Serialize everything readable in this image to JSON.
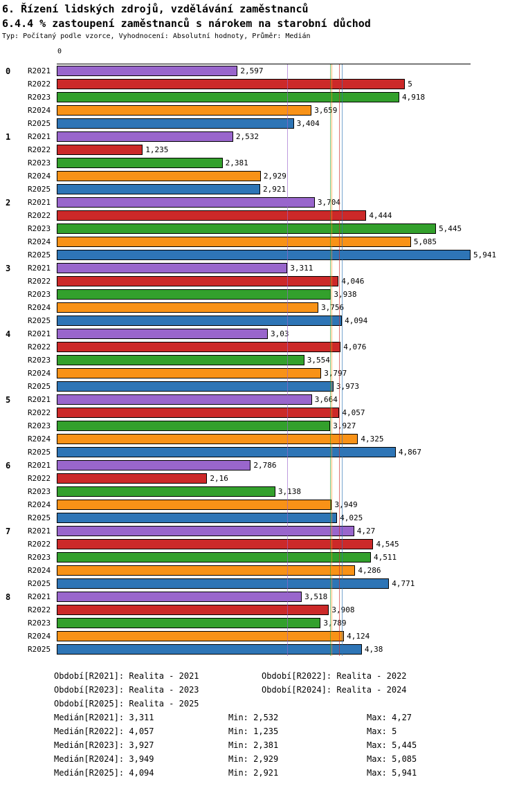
{
  "chart_data": {
    "type": "bar",
    "orientation": "horizontal",
    "title": "6. Řízení lidských zdrojů, vzdělávání zaměstnanců",
    "subtitle": "6.4.4 % zastoupení zaměstnanců s nárokem na starobní důchod",
    "meta": "Typ: Počítaný podle vzorce, Vyhodnocení: Absolutní hodnoty, Průměr: Medián",
    "x_axis": {
      "origin_label": "0",
      "max": 5.941,
      "gridlines": false
    },
    "series": [
      {
        "name": "R2021",
        "color": "#9966CC",
        "median": "3,311"
      },
      {
        "name": "R2022",
        "color": "#CC2929",
        "median": "4,057"
      },
      {
        "name": "R2023",
        "color": "#33A02C",
        "median": "3,927"
      },
      {
        "name": "R2024",
        "color": "#F89217",
        "median": "3,949"
      },
      {
        "name": "R2025",
        "color": "#2E75B6",
        "median": "4,094"
      }
    ],
    "groups": [
      {
        "label": "0",
        "values": [
          "2,597",
          "5",
          "4,918",
          "3,659",
          "3,404"
        ]
      },
      {
        "label": "1",
        "values": [
          "2,532",
          "1,235",
          "2,381",
          "2,929",
          "2,921"
        ]
      },
      {
        "label": "2",
        "values": [
          "3,704",
          "4,444",
          "5,445",
          "5,085",
          "5,941"
        ]
      },
      {
        "label": "3",
        "values": [
          "3,311",
          "4,046",
          "3,938",
          "3,756",
          "4,094"
        ]
      },
      {
        "label": "4",
        "values": [
          "3,03",
          "4,076",
          "3,554",
          "3,797",
          "3,973"
        ]
      },
      {
        "label": "5",
        "values": [
          "3,664",
          "4,057",
          "3,927",
          "4,325",
          "4,867"
        ]
      },
      {
        "label": "6",
        "values": [
          "2,786",
          "2,16",
          "3,138",
          "3,949",
          "4,025"
        ]
      },
      {
        "label": "7",
        "values": [
          "4,27",
          "4,545",
          "4,511",
          "4,286",
          "4,771"
        ]
      },
      {
        "label": "8",
        "values": [
          "3,518",
          "3,908",
          "3,789",
          "4,124",
          "4,38"
        ]
      }
    ],
    "legend": [
      "Období[R2021]: Realita - 2021",
      "Období[R2022]: Realita - 2022",
      "Období[R2023]: Realita - 2023",
      "Období[R2024]: Realita - 2024",
      "Období[R2025]: Realita - 2025"
    ],
    "stats": [
      {
        "median": "Medián[R2021]: 3,311",
        "min": "Min: 2,532",
        "max": "Max: 4,27"
      },
      {
        "median": "Medián[R2022]: 4,057",
        "min": "Min: 1,235",
        "max": "Max: 5"
      },
      {
        "median": "Medián[R2023]: 3,927",
        "min": "Min: 2,381",
        "max": "Max: 5,445"
      },
      {
        "median": "Medián[R2024]: 3,949",
        "min": "Min: 2,929",
        "max": "Max: 5,085"
      },
      {
        "median": "Medián[R2025]: 4,094",
        "min": "Min: 2,921",
        "max": "Max: 5,941"
      }
    ]
  }
}
